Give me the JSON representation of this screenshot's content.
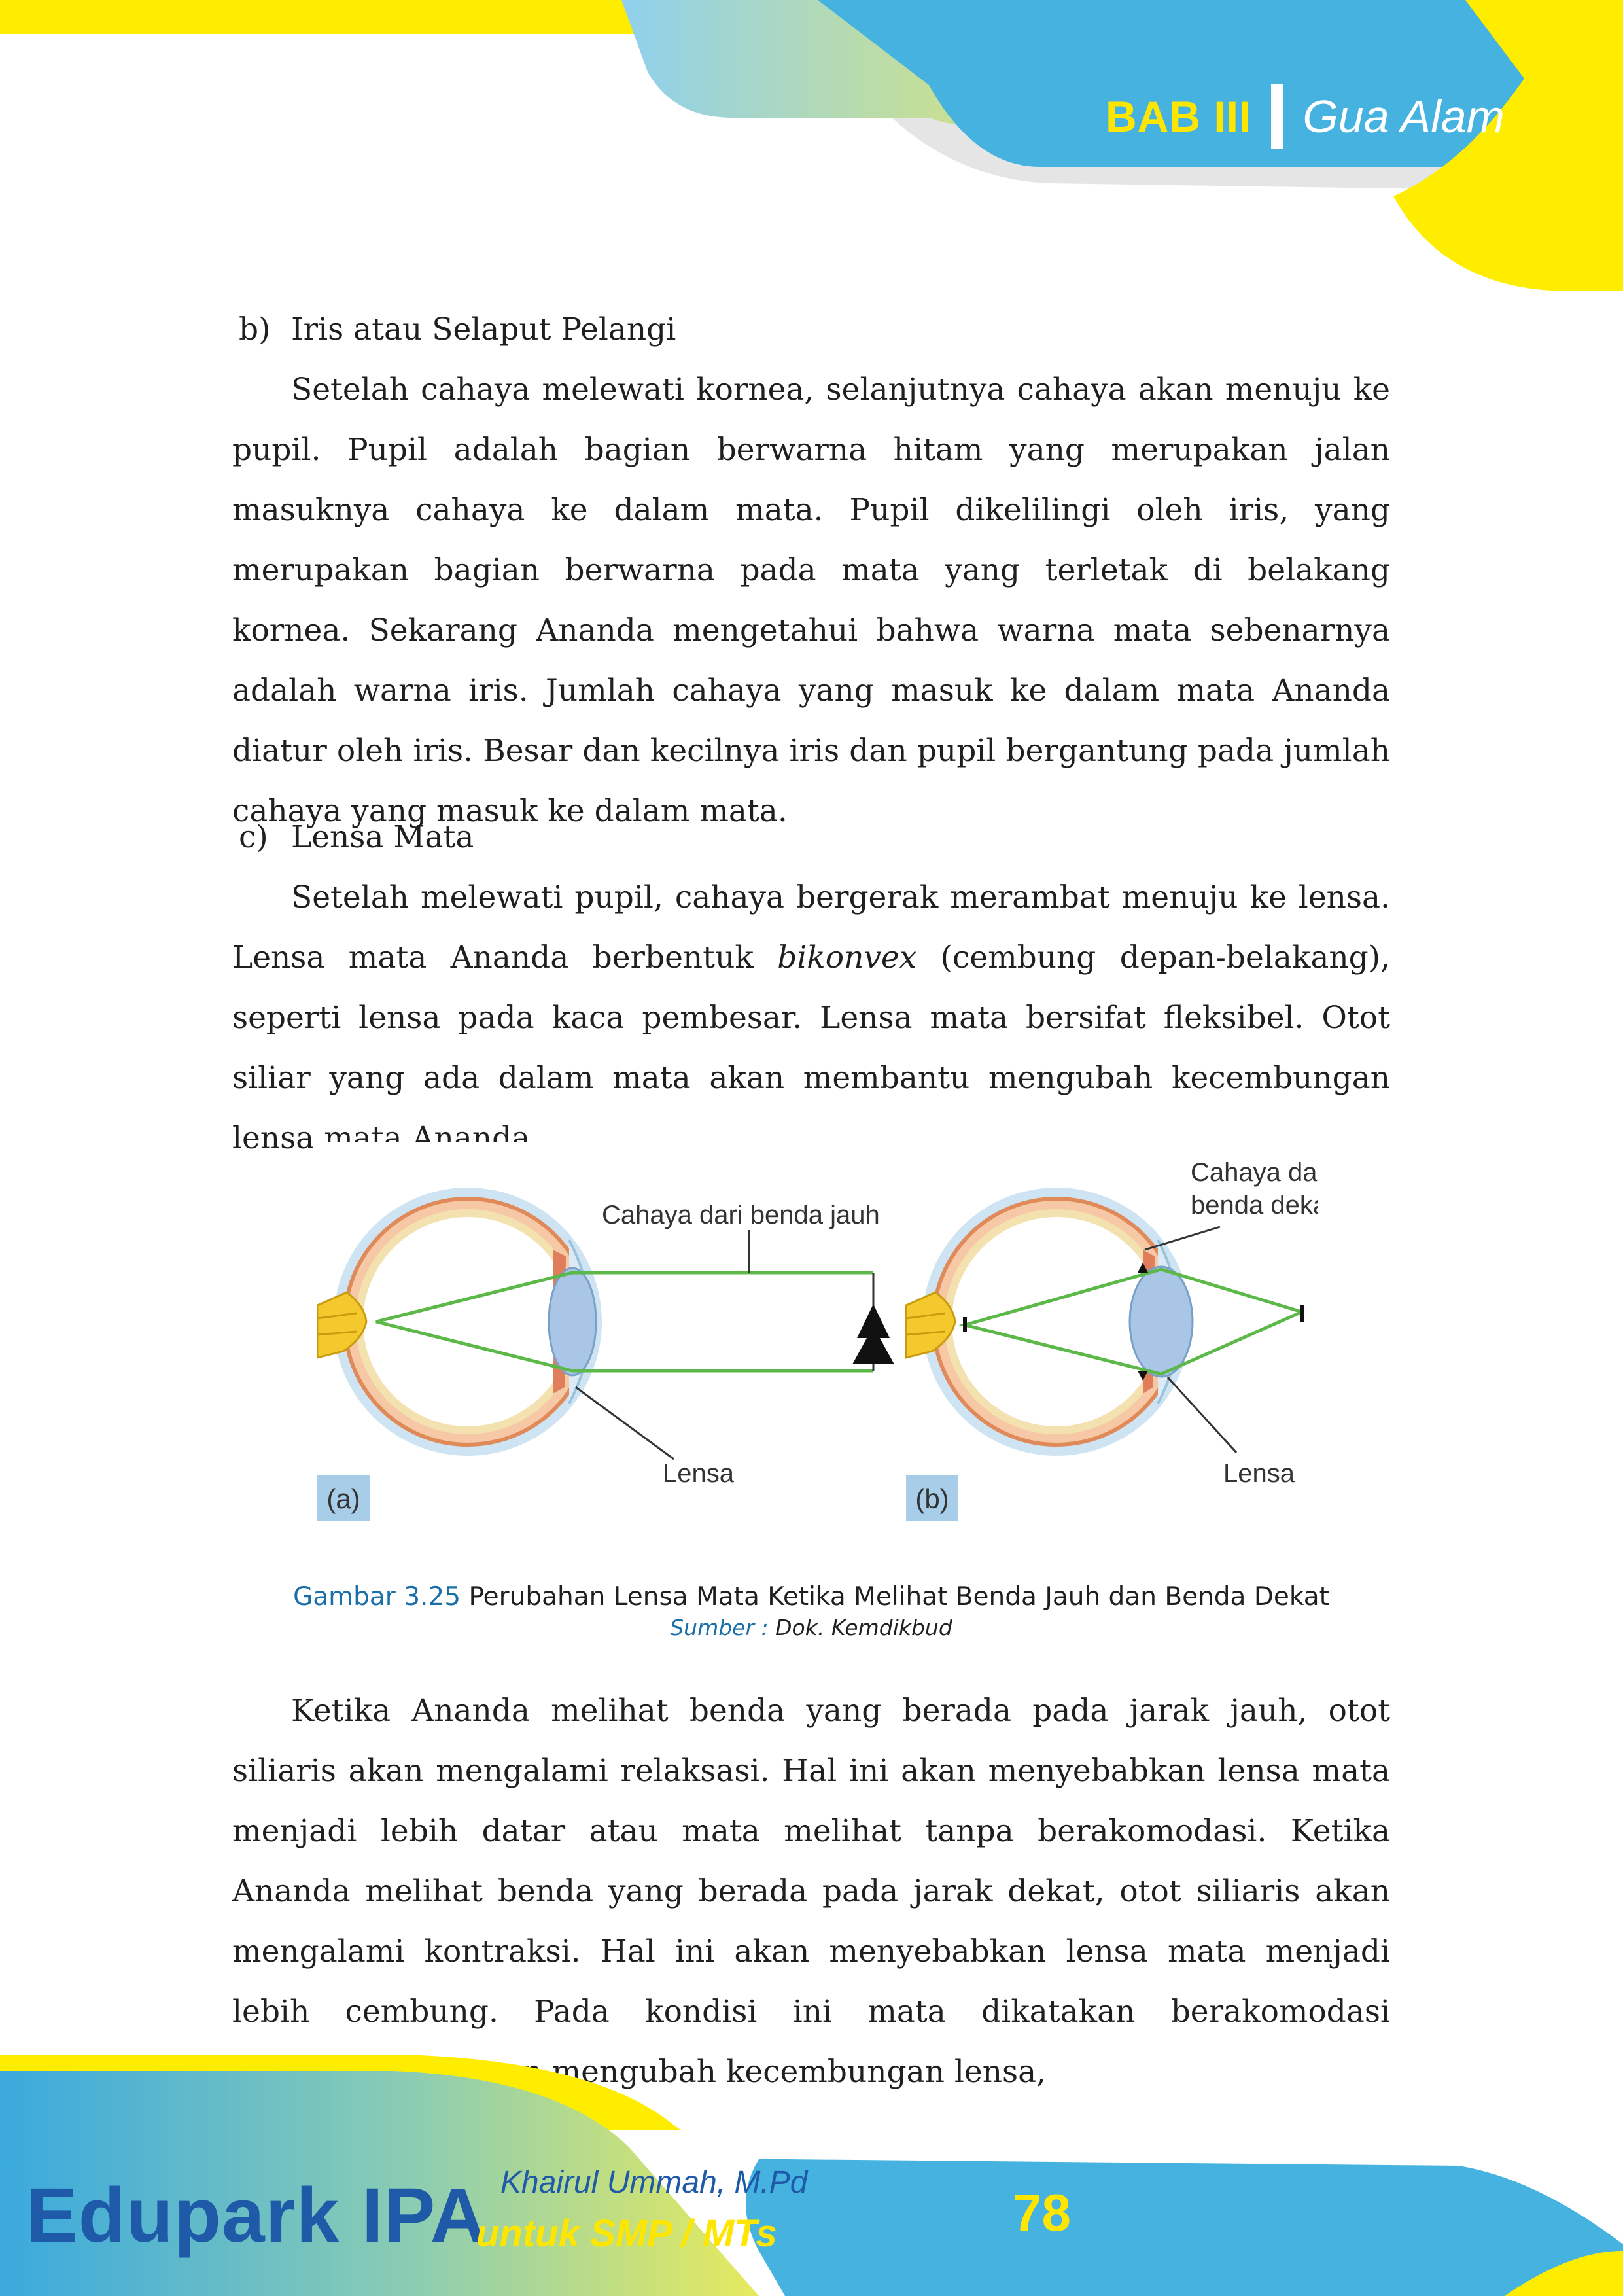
{
  "header": {
    "chapter_label": "BAB III",
    "chapter_title": "Gua Alam",
    "colors": {
      "blue": "#45b2e0",
      "yellow": "#ffed00",
      "green": "#b6d88b"
    }
  },
  "section_b": {
    "marker": "b)",
    "title": "Iris atau Selaput Pelangi",
    "paragraph": "Setelah cahaya melewati kornea, selanjutnya cahaya akan menuju ke pupil. Pupil adalah bagian berwarna hitam yang merupakan jalan masuknya cahaya ke dalam mata. Pupil dikelilingi oleh iris, yang merupakan bagian berwarna pada mata yang terletak di belakang kornea. Sekarang Ananda mengetahui bahwa warna mata sebenarnya adalah warna iris. Jumlah cahaya yang masuk ke dalam mata Ananda diatur oleh iris. Besar dan kecilnya iris dan pupil bergantung pada jumlah cahaya yang masuk ke dalam mata."
  },
  "section_c": {
    "marker": "c)",
    "title": "Lensa Mata",
    "para_before": "Setelah melewati pupil, cahaya bergerak merambat menuju ke lensa. Lensa mata Ananda berbentuk",
    "para_italic": "bikonvex",
    "para_after": "(cembung depan-belakang), seperti lensa pada kaca pembesar. Lensa mata bersifat fleksibel. Otot siliar yang ada dalam mata akan membantu mengubah kecembungan lensa mata Ananda."
  },
  "figure": {
    "panel_a": {
      "tag": "(a)",
      "light_label": "Cahaya dari benda jauh",
      "lens_label": "Lensa"
    },
    "panel_b": {
      "tag": "(b)",
      "light_label_line1": "Cahaya dari",
      "light_label_line2": "benda dekat",
      "lens_label": "Lensa"
    },
    "caption_label": "Gambar 3.25",
    "caption_text": "Perubahan Lensa Mata Ketika Melihat Benda Jauh dan Benda Dekat",
    "source_label": "Sumber :",
    "source_text": "Dok. Kemdikbud"
  },
  "closing_paragraph": "Ketika Ananda melihat benda yang berada pada jarak jauh, otot siliaris akan mengalami relaksasi. Hal ini akan menyebabkan lensa mata menjadi lebih datar atau mata melihat tanpa berakomodasi. Ketika Ananda melihat benda yang berada pada jarak dekat, otot siliaris akan mengalami kontraksi. Hal ini akan menyebabkan lensa mata menjadi lebih cembung. Pada kondisi ini mata dikatakan berakomodasi maksimum. Dengan mengubah kecembungan lensa,",
  "footer": {
    "brand": "Edupark IPA",
    "author": "Khairul Ummah, M.Pd",
    "edition": "untuk SMP / MTs",
    "page_number": "78"
  }
}
